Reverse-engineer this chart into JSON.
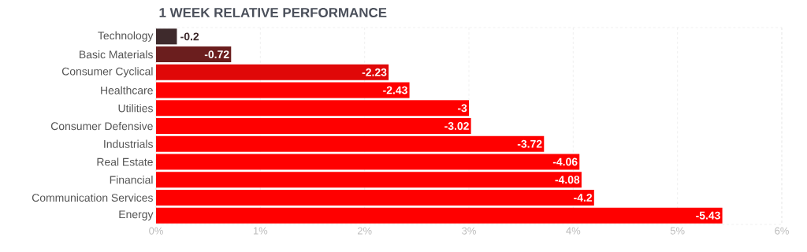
{
  "chart_data": {
    "type": "bar",
    "orientation": "horizontal",
    "title": "1 WEEK RELATIVE PERFORMANCE",
    "categories": [
      "Technology",
      "Basic Materials",
      "Consumer Cyclical",
      "Healthcare",
      "Utilities",
      "Consumer Defensive",
      "Industrials",
      "Real Estate",
      "Financial",
      "Communication Services",
      "Energy"
    ],
    "values": [
      -0.2,
      -0.72,
      -2.23,
      -2.43,
      -3,
      -3.02,
      -3.72,
      -4.06,
      -4.08,
      -4.2,
      -5.43
    ],
    "value_labels": [
      "-0.2",
      "-0.72",
      "-2.23",
      "-2.43",
      "-3",
      "-3.02",
      "-3.72",
      "-4.06",
      "-4.08",
      "-4.2",
      "-5.43"
    ],
    "colors": [
      "#3e2a2c",
      "#6b1e1e",
      "#e00808",
      "#ff0000",
      "#ff0000",
      "#ff0000",
      "#ff0000",
      "#ff0000",
      "#ff0000",
      "#ff0000",
      "#ff0000"
    ],
    "xlim": [
      0,
      -6
    ],
    "xticks": [
      {
        "value": 0,
        "label": "0%"
      },
      {
        "value": -1,
        "label": "1%"
      },
      {
        "value": -2,
        "label": "2%"
      },
      {
        "value": -3,
        "label": "3%"
      },
      {
        "value": -4,
        "label": "4%"
      },
      {
        "value": -5,
        "label": "5%"
      },
      {
        "value": -6,
        "label": "6%"
      }
    ],
    "grid": "x"
  }
}
